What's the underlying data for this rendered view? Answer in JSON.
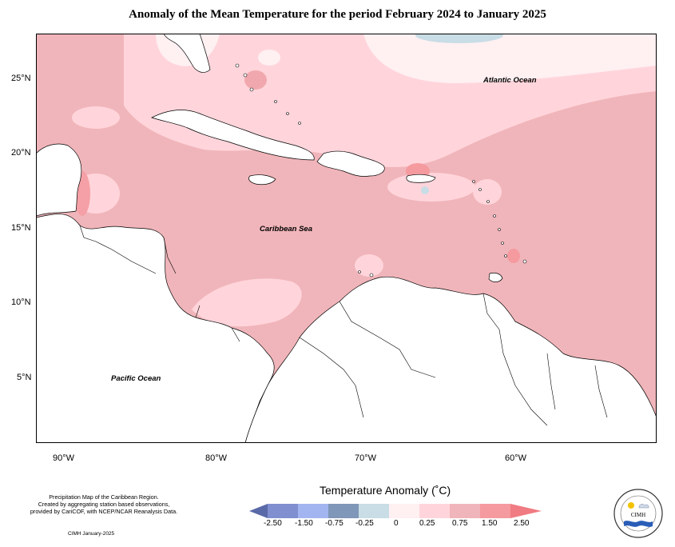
{
  "title": "Anomaly of the Mean Temperature for the period February 2024 to January 2025",
  "map": {
    "labels": {
      "atlantic": "Atlantic Ocean",
      "caribbean": "Caribbean Sea",
      "pacific": "Pacific Ocean"
    },
    "lat_ticks": [
      "25°N",
      "20°N",
      "15°N",
      "10°N",
      "5°N"
    ],
    "lon_ticks": [
      "90°W",
      "80°W",
      "70°W",
      "60°W"
    ]
  },
  "legend": {
    "title": "Temperature Anomaly (˚C)",
    "ticks": [
      "-2.50",
      "-1.50",
      "-0.75",
      "-0.25",
      "0",
      "0.25",
      "0.75",
      "1.50",
      "2.50"
    ],
    "colors": [
      "#5a6aa8",
      "#7f8fd0",
      "#a3b5f0",
      "#7f97b8",
      "#c8dde5",
      "#fff0f2",
      "#ffd5db",
      "#f0b5ba",
      "#f59a9f",
      "#f07b82"
    ]
  },
  "credits": {
    "line1": "Precipitation Map of the Caribbean Region.",
    "line2": "Created by aggregating station based observations,",
    "line3": "provided by CariCOF, with NCEP/NCAR Reanalysis Data.",
    "date": "CIMH January-2025"
  },
  "logo": {
    "name": "CIMH",
    "icon": "cimh-logo"
  }
}
